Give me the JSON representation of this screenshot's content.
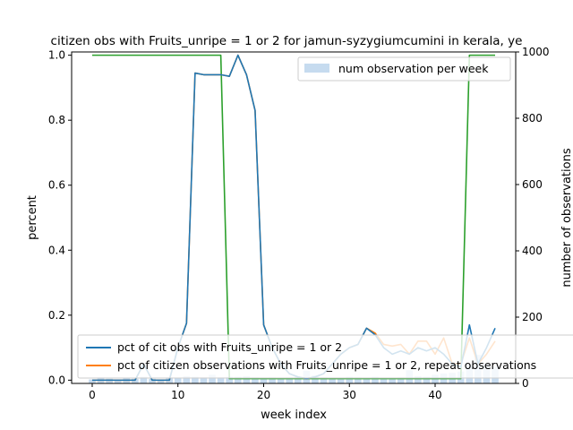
{
  "chart_data": {
    "type": "line",
    "title": "citizen obs with Fruits_unripe = 1 or 2 for jamun-syzygiumcumini in kerala, ye",
    "xlabel": "week index",
    "ylabel": "percent",
    "ylabel_right": "number of observations",
    "xlim": [
      -2.4,
      49.4
    ],
    "ylim": [
      -0.01,
      1.01
    ],
    "ylim_right": [
      0,
      1000
    ],
    "xticks": [
      0,
      10,
      20,
      30,
      40
    ],
    "yticks": [
      "0.0",
      "0.2",
      "0.4",
      "0.6",
      "0.8",
      "1.0"
    ],
    "yticks_right": [
      0,
      200,
      400,
      600,
      800,
      1000
    ],
    "legend_top": {
      "position": "top-right",
      "label": "num observation per week"
    },
    "legend_bottom": {
      "position": "bottom-left",
      "labels": [
        "pct of cit obs with Fruits_unripe = 1 or 2",
        "pct of citizen observations with Fruits_unripe = 1 or 2, repeat observations"
      ]
    },
    "x": [
      0,
      1,
      2,
      3,
      4,
      5,
      6,
      7,
      8,
      9,
      10,
      11,
      12,
      13,
      14,
      15,
      16,
      17,
      18,
      19,
      20,
      21,
      22,
      23,
      24,
      25,
      26,
      27,
      28,
      29,
      30,
      31,
      32,
      33,
      34,
      35,
      36,
      37,
      38,
      39,
      40,
      41,
      42,
      43,
      44,
      45,
      46,
      47
    ],
    "bars": {
      "name": "num observation per week",
      "color": "#c6dbef",
      "values": [
        12,
        18,
        14,
        12,
        16,
        14,
        20,
        14,
        12,
        18,
        16,
        22,
        20,
        18,
        26,
        18,
        20,
        20,
        22,
        18,
        16,
        18,
        16,
        18,
        20,
        38,
        24,
        18,
        14,
        16,
        20,
        18,
        14,
        20,
        16,
        16,
        18,
        40,
        22,
        20,
        26,
        30,
        32,
        36,
        56,
        86,
        60,
        50
      ]
    },
    "series": [
      {
        "name": "pct of cit obs with Fruits_unripe = 1 or 2",
        "color": "#1f77b4",
        "values": [
          0,
          0,
          0,
          0,
          0,
          0,
          0.05,
          0,
          0,
          0,
          0.1,
          0.175,
          0.945,
          0.94,
          0.94,
          0.94,
          0.935,
          1.0,
          0.94,
          0.83,
          0.17,
          0.1,
          0.05,
          0.02,
          0.01,
          0.005,
          0.01,
          0.02,
          0.05,
          0.08,
          0.1,
          0.11,
          0.16,
          0.14,
          0.1,
          0.08,
          0.09,
          0.08,
          0.1,
          0.09,
          0.1,
          0.08,
          0.05,
          0.04,
          0.17,
          0.05,
          0.1,
          0.16
        ]
      },
      {
        "name": "pct of citizen observations with Fruits_unripe = 1 or 2, repeat observations",
        "color": "#ff7f0e",
        "values": [
          0,
          0,
          0,
          0,
          0,
          0,
          0.05,
          0,
          0,
          0,
          0.1,
          0.175,
          0.945,
          0.94,
          0.94,
          0.94,
          0.935,
          1.0,
          0.94,
          0.83,
          0.17,
          0.1,
          0.05,
          0.02,
          0.01,
          0.005,
          0.01,
          0.02,
          0.05,
          0.08,
          0.1,
          0.11,
          0.16,
          0.145,
          0.11,
          0.105,
          0.11,
          0.08,
          0.12,
          0.12,
          0.08,
          0.13,
          0.05,
          0.05,
          0.13,
          0.05,
          0.08,
          0.12
        ]
      },
      {
        "name": "green line",
        "color": "#2ca02c",
        "values": [
          1,
          1,
          1,
          1,
          1,
          1,
          1,
          1,
          1,
          1,
          1,
          1,
          1,
          1,
          1,
          1,
          0.005,
          0.005,
          0.005,
          0.005,
          0.005,
          0.005,
          0.005,
          0.005,
          0.005,
          0.005,
          0.005,
          0.005,
          0.005,
          0.005,
          0.005,
          0.005,
          0.005,
          0.005,
          0.005,
          0.005,
          0.005,
          0.005,
          0.005,
          0.005,
          0.005,
          0.005,
          0.005,
          0.005,
          1,
          1,
          1,
          1
        ]
      }
    ]
  }
}
